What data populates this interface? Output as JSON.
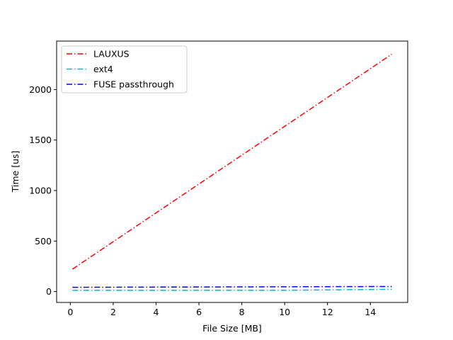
{
  "chart_data": {
    "type": "line",
    "title": "",
    "xlabel": "File Size [MB]",
    "ylabel": "Time [us]",
    "xlim": [
      -0.64,
      15.74
    ],
    "ylim": [
      -108,
      2480
    ],
    "xticks": [
      0,
      2,
      4,
      6,
      8,
      10,
      12,
      14
    ],
    "yticks": [
      0,
      500,
      1000,
      1500,
      2000
    ],
    "grid": false,
    "legend_position": "top-left",
    "series": [
      {
        "name": "LAUXUS",
        "color": "#ff0000",
        "linestyle": "dashdot",
        "points": [
          [
            0.1,
            222
          ],
          [
            15,
            2350
          ]
        ]
      },
      {
        "name": "ext4",
        "color": "#00bfbf",
        "linestyle": "dashdot",
        "points": [
          [
            0.1,
            12
          ],
          [
            10,
            13
          ],
          [
            15,
            22
          ]
        ]
      },
      {
        "name": "FUSE passthrough",
        "color": "#0000ff",
        "linestyle": "dashdot",
        "points": [
          [
            0.1,
            42
          ],
          [
            15,
            50
          ]
        ]
      }
    ]
  }
}
